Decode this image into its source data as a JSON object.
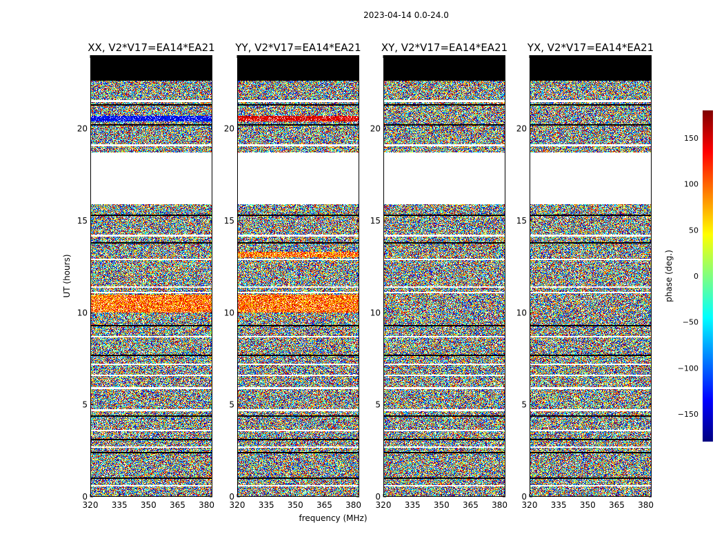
{
  "suptitle": "2023-04-14 0.0-24.0",
  "chart_data": {
    "type": "heatmap",
    "suptitle": "2023-04-14 0.0-24.0",
    "xlabel": "frequency (MHz)",
    "ylabel": "UT (hours)",
    "xlim": [
      320,
      383
    ],
    "ylim": [
      0,
      24
    ],
    "xticks": [
      320,
      335,
      350,
      365,
      380
    ],
    "yticks": [
      0,
      5,
      10,
      15,
      20
    ],
    "colorbar": {
      "label": "phase (deg.)",
      "range": [
        -180,
        180
      ],
      "ticks": [
        150,
        100,
        50,
        0,
        -50,
        -100,
        -150
      ],
      "tick_labels": [
        "150",
        "100",
        "50",
        "0",
        "−50",
        "−100",
        "−150"
      ],
      "colormap": "jet"
    },
    "panels": [
      {
        "title": "XX, V2*V17=EA14*EA21",
        "warm_bands": [
          [
            10.0,
            11.0
          ]
        ],
        "blue_bands": [
          [
            20.4,
            20.7
          ]
        ],
        "red_bands": []
      },
      {
        "title": "YY, V2*V17=EA14*EA21",
        "warm_bands": [
          [
            10.0,
            11.0
          ],
          [
            13.0,
            13.3
          ]
        ],
        "blue_bands": [],
        "red_bands": [
          [
            20.4,
            20.7
          ]
        ]
      },
      {
        "title": "XY, V2*V17=EA14*EA21",
        "warm_bands": [],
        "blue_bands": [],
        "red_bands": []
      },
      {
        "title": "YX, V2*V17=EA14*EA21",
        "warm_bands": [],
        "blue_bands": [],
        "red_bands": []
      }
    ],
    "no_data_ranges_hours": [
      [
        18.7,
        15.9
      ]
    ],
    "flagged_black_ranges_hours": [
      [
        22.6,
        24.0
      ]
    ],
    "thin_gap_rows_hours": [
      0.6,
      2.7,
      3.6,
      4.7,
      5.9,
      6.6,
      7.2,
      8.7,
      11.1,
      11.4,
      12.9,
      14.2,
      17.0,
      19.1,
      21.5,
      22.8
    ],
    "dark_rows_hours": [
      1.0,
      2.4,
      3.1,
      4.4,
      7.7,
      9.3,
      13.8,
      15.3,
      20.2,
      21.3
    ]
  }
}
